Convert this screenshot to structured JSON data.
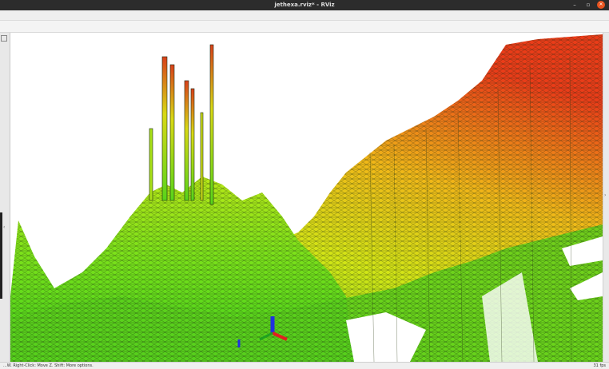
{
  "window": {
    "title": "jethexa.rviz* - RViz",
    "minimize": "–",
    "maximize": "▫",
    "close": "✕"
  },
  "side_panel": {
    "collapse_handle": "‹"
  },
  "right_panel": {
    "collapse_handle": "›"
  },
  "viewport": {
    "scene": "3d-elevation-map",
    "colors": {
      "low": "#2fc81a",
      "mid": "#d8e414",
      "high": "#e8421a",
      "mesh_line": "#1c2a12",
      "axis_x": "#e02020",
      "axis_y": "#20a020",
      "axis_z": "#2030e0"
    }
  },
  "statusbar": {
    "hint": "...W. Right-Click: Move Z. Shift: More options.",
    "fps": "31 fps"
  }
}
